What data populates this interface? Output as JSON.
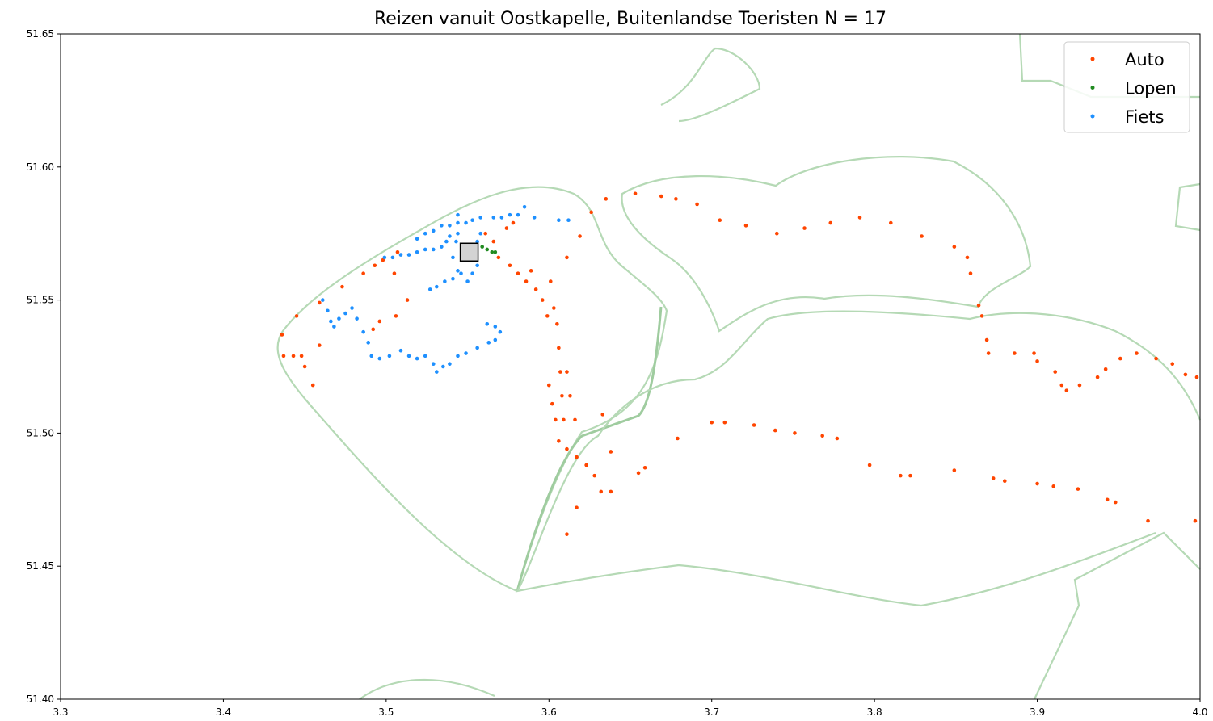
{
  "chart_data": {
    "type": "scatter",
    "title": "Reizen vanuit Oostkapelle, Buitenlandse Toeristen N = 17",
    "xlim": [
      3.3,
      4.0
    ],
    "ylim": [
      51.4,
      51.65
    ],
    "xticks": [
      3.3,
      3.4,
      3.5,
      3.6,
      3.7,
      3.8,
      3.9,
      {
        "value": 4,
        "label": "4.0"
      }
    ],
    "yticks": [
      {
        "value": 51.4,
        "label": "51.40"
      },
      51.45,
      {
        "value": 51.5,
        "label": "51.50"
      },
      51.55,
      {
        "value": 51.6,
        "label": "51.60"
      },
      51.65
    ],
    "legend": "upper right",
    "highlight": {
      "x": 3.551,
      "y": 51.568,
      "color": "#d3d3d3"
    },
    "series": [
      {
        "name": "Auto",
        "color": "#ff4500",
        "x": [
          3.436,
          3.437,
          3.443,
          3.448,
          3.45,
          3.455,
          3.445,
          3.459,
          3.459,
          3.473,
          3.486,
          3.493,
          3.498,
          3.505,
          3.507,
          3.513,
          3.506,
          3.496,
          3.492,
          3.561,
          3.566,
          3.574,
          3.578,
          3.569,
          3.576,
          3.581,
          3.586,
          3.589,
          3.592,
          3.596,
          3.599,
          3.601,
          3.603,
          3.605,
          3.606,
          3.607,
          3.608,
          3.609,
          3.606,
          3.611,
          3.617,
          3.623,
          3.628,
          3.632,
          3.638,
          3.617,
          3.611,
          3.616,
          3.613,
          3.611,
          3.6,
          3.602,
          3.604,
          3.633,
          3.638,
          3.655,
          3.659,
          3.611,
          3.619,
          3.626,
          3.635,
          3.653,
          3.669,
          3.678,
          3.691,
          3.705,
          3.721,
          3.74,
          3.757,
          3.773,
          3.791,
          3.81,
          3.829,
          3.849,
          3.857,
          3.859,
          3.864,
          3.866,
          3.869,
          3.87,
          3.886,
          3.898,
          3.9,
          3.911,
          3.915,
          3.918,
          3.926,
          3.937,
          3.942,
          3.951,
          3.961,
          3.973,
          3.983,
          3.991,
          3.998,
          3.679,
          3.7,
          3.708,
          3.726,
          3.739,
          3.751,
          3.768,
          3.777,
          3.797,
          3.816,
          3.822,
          3.849,
          3.873,
          3.88,
          3.9,
          3.91,
          3.925,
          3.943,
          3.948,
          3.968,
          3.997
        ],
        "values": [
          51.537,
          51.529,
          51.529,
          51.529,
          51.525,
          51.518,
          51.544,
          51.533,
          51.549,
          51.555,
          51.56,
          51.563,
          51.565,
          51.56,
          51.568,
          51.55,
          51.544,
          51.542,
          51.539,
          51.575,
          51.572,
          51.577,
          51.579,
          51.566,
          51.563,
          51.56,
          51.557,
          51.561,
          51.554,
          51.55,
          51.544,
          51.557,
          51.547,
          51.541,
          51.532,
          51.523,
          51.514,
          51.505,
          51.497,
          51.494,
          51.491,
          51.488,
          51.484,
          51.478,
          51.478,
          51.472,
          51.462,
          51.505,
          51.514,
          51.523,
          51.518,
          51.511,
          51.505,
          51.507,
          51.493,
          51.485,
          51.487,
          51.566,
          51.574,
          51.583,
          51.588,
          51.59,
          51.589,
          51.588,
          51.586,
          51.58,
          51.578,
          51.575,
          51.577,
          51.579,
          51.581,
          51.579,
          51.574,
          51.57,
          51.566,
          51.56,
          51.548,
          51.544,
          51.535,
          51.53,
          51.53,
          51.53,
          51.527,
          51.523,
          51.518,
          51.516,
          51.518,
          51.521,
          51.524,
          51.528,
          51.53,
          51.528,
          51.526,
          51.522,
          51.521,
          51.498,
          51.504,
          51.504,
          51.503,
          51.501,
          51.5,
          51.499,
          51.498,
          51.488,
          51.484,
          51.484,
          51.486,
          51.483,
          51.482,
          51.481,
          51.48,
          51.479,
          51.475,
          51.474,
          51.467,
          51.467
        ]
      },
      {
        "name": "Lopen",
        "color": "#228b22",
        "x": [
          3.559,
          3.562,
          3.565,
          3.567
        ],
        "values": [
          51.57,
          51.569,
          51.568,
          51.568
        ]
      },
      {
        "name": "Fiets",
        "color": "#1e90ff",
        "x": [
          3.585,
          3.581,
          3.576,
          3.571,
          3.566,
          3.558,
          3.553,
          3.549,
          3.544,
          3.539,
          3.534,
          3.529,
          3.524,
          3.519,
          3.544,
          3.544,
          3.543,
          3.537,
          3.534,
          3.529,
          3.524,
          3.519,
          3.514,
          3.509,
          3.504,
          3.499,
          3.541,
          3.544,
          3.541,
          3.536,
          3.531,
          3.527,
          3.553,
          3.556,
          3.55,
          3.546,
          3.556,
          3.558,
          3.591,
          3.606,
          3.612,
          3.539,
          3.461,
          3.464,
          3.466,
          3.468,
          3.471,
          3.475,
          3.479,
          3.482,
          3.486,
          3.489,
          3.491,
          3.496,
          3.502,
          3.509,
          3.514,
          3.519,
          3.524,
          3.529,
          3.531,
          3.535,
          3.539,
          3.544,
          3.549,
          3.556,
          3.563,
          3.567,
          3.57,
          3.567,
          3.562
        ],
        "values": [
          51.585,
          51.582,
          51.582,
          51.581,
          51.581,
          51.581,
          51.58,
          51.579,
          51.579,
          51.578,
          51.578,
          51.576,
          51.575,
          51.573,
          51.582,
          51.575,
          51.572,
          51.572,
          51.57,
          51.569,
          51.569,
          51.568,
          51.567,
          51.567,
          51.566,
          51.566,
          51.566,
          51.561,
          51.558,
          51.557,
          51.555,
          51.554,
          51.56,
          51.563,
          51.557,
          51.56,
          51.572,
          51.575,
          51.581,
          51.58,
          51.58,
          51.574,
          51.55,
          51.546,
          51.542,
          51.54,
          51.543,
          51.545,
          51.547,
          51.543,
          51.538,
          51.534,
          51.529,
          51.528,
          51.529,
          51.531,
          51.529,
          51.528,
          51.529,
          51.526,
          51.523,
          51.525,
          51.526,
          51.529,
          51.53,
          51.532,
          51.534,
          51.535,
          51.538,
          51.54,
          51.541
        ]
      }
    ]
  }
}
